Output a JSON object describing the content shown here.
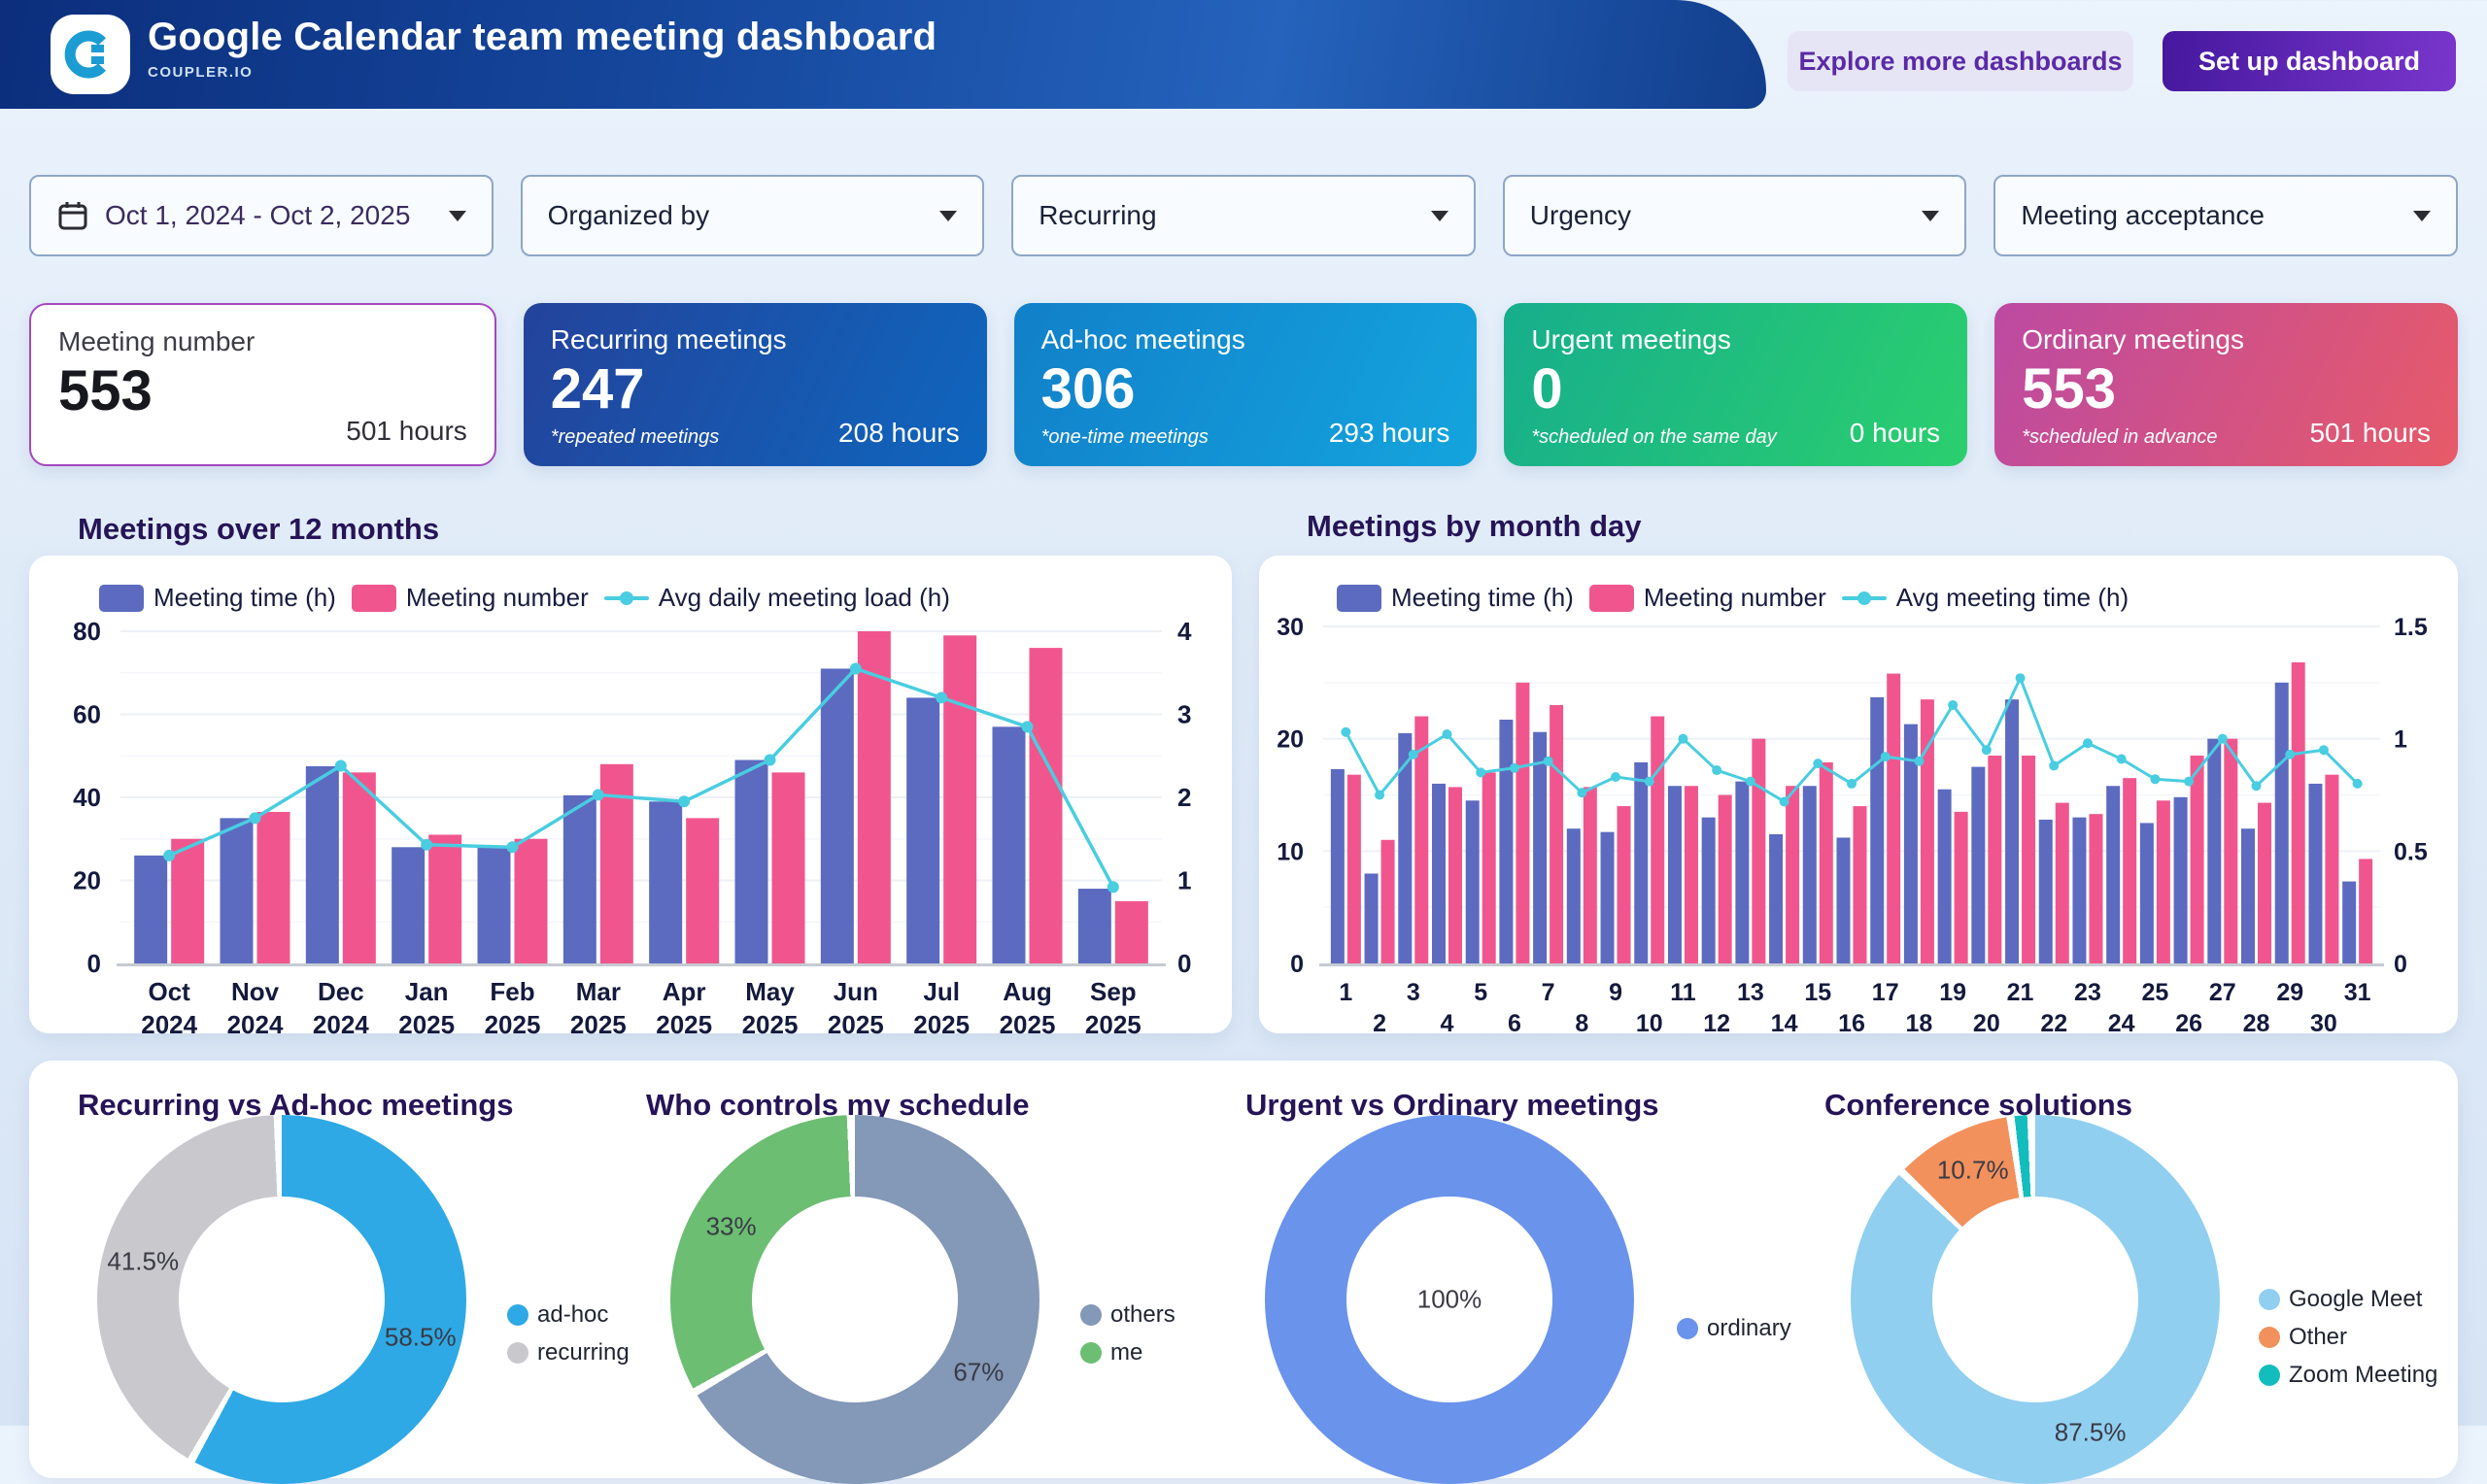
{
  "header": {
    "title": "Google Calendar team meeting dashboard",
    "brand": "COUPLER.IO",
    "explore_button": "Explore more dashboards",
    "setup_button": "Set up dashboard"
  },
  "filters": [
    {
      "label": "Oct 1, 2024 - Oct 2, 2025"
    },
    {
      "label": "Organized by"
    },
    {
      "label": "Recurring"
    },
    {
      "label": "Urgency"
    },
    {
      "label": "Meeting acceptance"
    }
  ],
  "kpis": [
    {
      "title": "Meeting number",
      "value": "553",
      "footnote": "",
      "hours": "501 hours"
    },
    {
      "title": "Recurring meetings",
      "value": "247",
      "footnote": "*repeated meetings",
      "hours": "208 hours"
    },
    {
      "title": "Ad-hoc meetings",
      "value": "306",
      "footnote": "*one-time meetings",
      "hours": "293 hours"
    },
    {
      "title": "Urgent meetings",
      "value": "0",
      "footnote": "*scheduled on the same day",
      "hours": "0 hours"
    },
    {
      "title": "Ordinary meetings",
      "value": "553",
      "footnote": "*scheduled in advance",
      "hours": "501 hours"
    }
  ],
  "chart_data": [
    {
      "type": "bar",
      "variant": "combo",
      "title": "Meetings over 12 months",
      "categories": [
        "Oct 2024",
        "Nov 2024",
        "Dec 2024",
        "Jan 2025",
        "Feb 2025",
        "Mar 2025",
        "Apr 2025",
        "May 2025",
        "Jun 2025",
        "Jul 2025",
        "Aug 2025",
        "Sep 2025"
      ],
      "xlabel_mode": "two-line",
      "left_axis": {
        "ticks": [
          0,
          20,
          40,
          60,
          80
        ],
        "max": 80
      },
      "right_axis": {
        "ticks": [
          0,
          1,
          2,
          3,
          4
        ],
        "max": 4
      },
      "series": [
        {
          "name": "Meeting time (h)",
          "kind": "bar",
          "axis": "left",
          "color": "#5C6BC0",
          "values": [
            26,
            35,
            47.5,
            28,
            28,
            40.5,
            39,
            49,
            71,
            64,
            57,
            18
          ]
        },
        {
          "name": "Meeting number",
          "kind": "bar",
          "axis": "left",
          "color": "#F0568D",
          "values": [
            30,
            36.5,
            46,
            31,
            30,
            48,
            35,
            46,
            80,
            79,
            76,
            15
          ]
        },
        {
          "name": "Avg daily meeting load (h)",
          "kind": "line",
          "axis": "right",
          "color": "#49CDE0",
          "values": [
            1.3,
            1.75,
            2.38,
            1.43,
            1.4,
            2.03,
            1.95,
            2.45,
            3.55,
            3.2,
            2.85,
            0.92
          ]
        }
      ]
    },
    {
      "type": "bar",
      "variant": "combo",
      "title": "Meetings by month day",
      "categories": [
        "1",
        "2",
        "3",
        "4",
        "5",
        "6",
        "7",
        "8",
        "9",
        "10",
        "11",
        "12",
        "13",
        "14",
        "15",
        "16",
        "17",
        "18",
        "19",
        "20",
        "21",
        "22",
        "23",
        "24",
        "25",
        "26",
        "27",
        "28",
        "29",
        "30",
        "31"
      ],
      "xlabel_mode": "staggered",
      "left_axis": {
        "ticks": [
          0,
          10,
          20,
          30
        ],
        "max": 30
      },
      "right_axis": {
        "ticks": [
          0,
          0.5,
          1,
          1.5
        ],
        "max": 1.5
      },
      "series": [
        {
          "name": "Meeting time (h)",
          "kind": "bar",
          "axis": "left",
          "color": "#5C6BC0",
          "values": [
            17.3,
            8,
            20.5,
            16,
            14.5,
            21.7,
            20.6,
            12,
            11.7,
            17.9,
            15.8,
            13,
            16.2,
            11.5,
            15.8,
            11.2,
            23.7,
            21.3,
            15.5,
            17.5,
            23.5,
            12.8,
            13,
            15.8,
            12.5,
            14.8,
            20,
            12,
            25,
            16,
            7.3
          ]
        },
        {
          "name": "Meeting number",
          "kind": "bar",
          "axis": "left",
          "color": "#F0568D",
          "values": [
            16.8,
            11,
            22,
            15.7,
            17,
            25,
            23,
            15.7,
            14,
            22,
            15.8,
            15,
            20,
            15.8,
            17.9,
            14,
            25.8,
            23.5,
            13.5,
            18.5,
            18.5,
            14.3,
            13.3,
            16.5,
            14.5,
            18.5,
            20,
            14.3,
            26.8,
            16.8,
            9.3
          ]
        },
        {
          "name": "Avg meeting time (h)",
          "kind": "line",
          "axis": "right",
          "color": "#49CDE0",
          "values": [
            1.03,
            0.75,
            0.93,
            1.02,
            0.85,
            0.87,
            0.9,
            0.76,
            0.83,
            0.81,
            1.0,
            0.86,
            0.81,
            0.72,
            0.89,
            0.8,
            0.92,
            0.9,
            1.15,
            0.95,
            1.27,
            0.88,
            0.98,
            0.91,
            0.82,
            0.81,
            1.0,
            0.79,
            0.93,
            0.95,
            0.8
          ]
        }
      ]
    },
    {
      "type": "pie",
      "title": "Recurring vs Ad-hoc meetings",
      "donut": true,
      "slices": [
        {
          "label": "ad-hoc",
          "value": 58.5,
          "color": "#2EA9E5",
          "pct_label": "58.5%"
        },
        {
          "label": "recurring",
          "value": 41.5,
          "color": "#C9C9CD",
          "pct_label": "41.5%"
        }
      ]
    },
    {
      "type": "pie",
      "title": "Who controls my schedule",
      "donut": true,
      "slices": [
        {
          "label": "others",
          "value": 67,
          "color": "#8498B7",
          "pct_label": "67%"
        },
        {
          "label": "me",
          "value": 33,
          "color": "#6CBE72",
          "pct_label": "33%"
        }
      ]
    },
    {
      "type": "pie",
      "title": "Urgent vs Ordinary meetings",
      "donut": true,
      "slices": [
        {
          "label": "ordinary",
          "value": 100,
          "color": "#6A93EC",
          "pct_label": "100%"
        }
      ]
    },
    {
      "type": "pie",
      "title": "Conference solutions",
      "donut": true,
      "slices": [
        {
          "label": "Google Meet",
          "value": 87.5,
          "color": "#90CFF0",
          "pct_label": "87.5%"
        },
        {
          "label": "Other",
          "value": 10.7,
          "color": "#F2915C",
          "pct_label": "10.7%"
        },
        {
          "label": "Zoom Meeting",
          "value": 1.8,
          "color": "#13BDBD",
          "pct_label": ""
        }
      ]
    }
  ],
  "colors": {
    "bar_time": "#5C6BC0",
    "bar_number": "#F0568D",
    "line_avg": "#49CDE0",
    "header_navy": "#15479D",
    "accent_purple": "#5B2AA6"
  }
}
